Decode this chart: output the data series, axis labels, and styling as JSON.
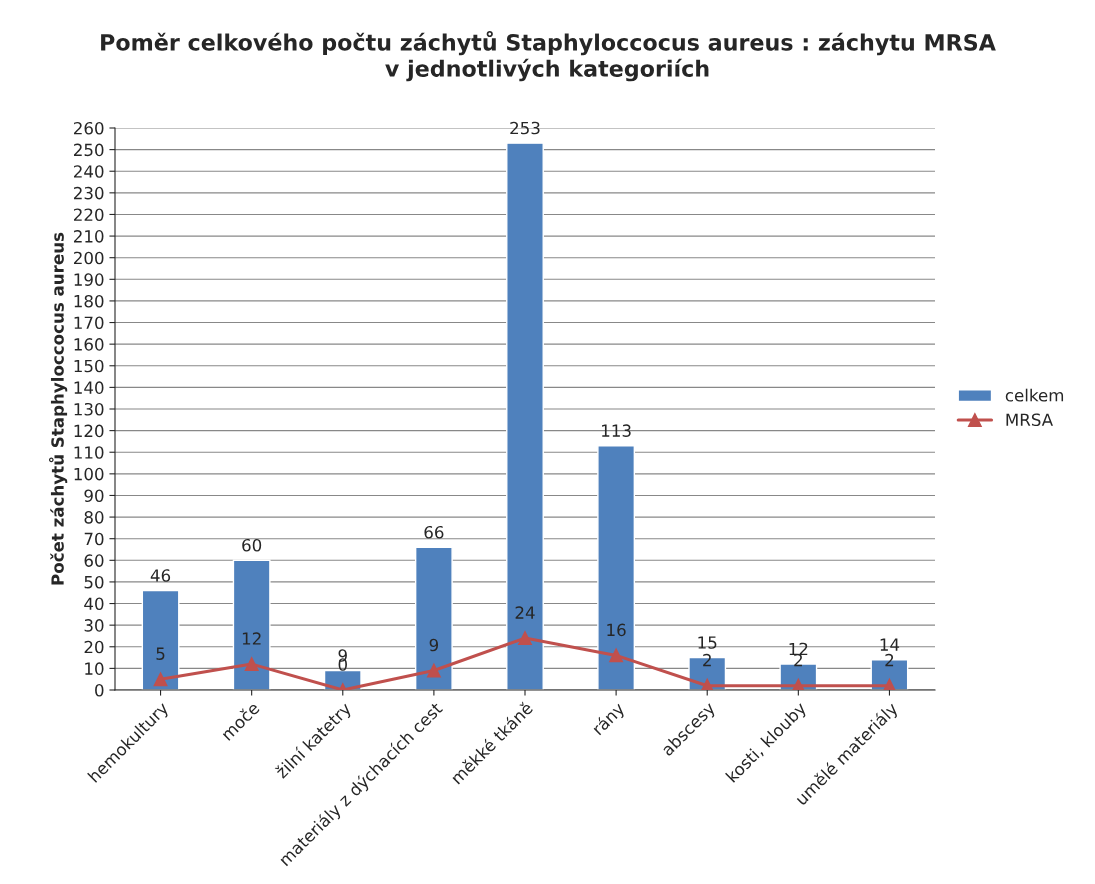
{
  "chart_data": {
    "type": "bar",
    "title": "Poměr celkového počtu záchytů Staphyloccocus aureus : záchytu MRSA\nv jednotlivých kategoriích",
    "ylabel": "Počet záchytů Staphyloccocus aureus",
    "categories": [
      "hemokultury",
      "moče",
      "žilní katetry",
      "materiály z dýchacích cest",
      "měkké tkáně",
      "rány",
      "abscesy",
      "kosti, klouby",
      "umělé materiály"
    ],
    "series": [
      {
        "name": "celkem",
        "color": "#4f81bd",
        "values": [
          46,
          60,
          9,
          66,
          253,
          113,
          15,
          12,
          14
        ]
      },
      {
        "name": "MRSA",
        "type": "line",
        "color": "#c0504d",
        "marker": "triangle",
        "values": [
          5,
          12,
          0,
          9,
          24,
          16,
          2,
          2,
          2
        ]
      }
    ],
    "ylim": [
      0,
      260
    ],
    "yticks": [
      0,
      10,
      20,
      30,
      40,
      50,
      60,
      70,
      80,
      90,
      100,
      110,
      120,
      130,
      140,
      150,
      160,
      170,
      180,
      190,
      200,
      210,
      220,
      230,
      240,
      250,
      260
    ],
    "grid": "y",
    "legend": "right",
    "data_labels": true
  }
}
